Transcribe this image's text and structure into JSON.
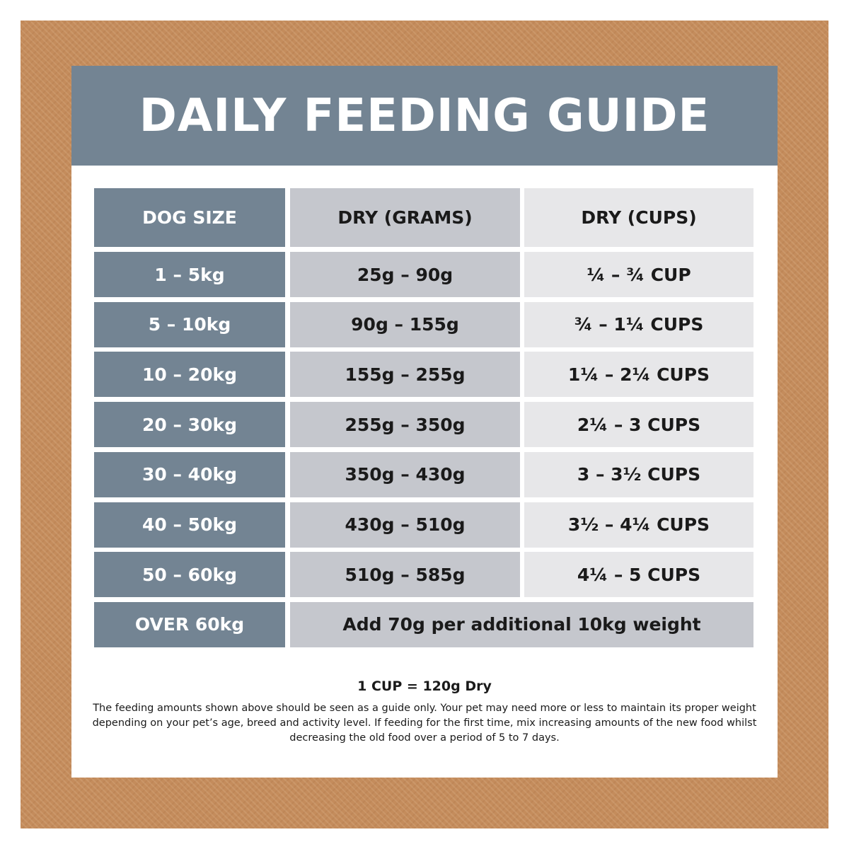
{
  "title": "DAILY FEEDING GUIDE",
  "table": {
    "headers": [
      "DOG SIZE",
      "DRY (GRAMS)",
      "DRY (CUPS)"
    ],
    "rows": [
      [
        "1 – 5kg",
        "25g – 90g",
        "¼ – ¾ CUP"
      ],
      [
        "5 – 10kg",
        "90g – 155g",
        "¾ – 1¼ CUPS"
      ],
      [
        "10 – 20kg",
        "155g – 255g",
        "1¼ – 2¼ CUPS"
      ],
      [
        "20 – 30kg",
        "255g – 350g",
        "2¼ – 3 CUPS"
      ],
      [
        "30 – 40kg",
        "350g – 430g",
        "3 – 3½ CUPS"
      ],
      [
        "40 – 50kg",
        "430g – 510g",
        "3½ – 4¼ CUPS"
      ],
      [
        "50 – 60kg",
        "510g – 585g",
        "4¼ – 5 CUPS"
      ]
    ],
    "last_row": {
      "size": "OVER 60kg",
      "note": "Add 70g per additional 10kg weight"
    }
  },
  "footer": {
    "conversion": "1 CUP = 120g Dry",
    "disclaimer": "The feeding amounts shown above should be seen as a guide only. Your pet may need more or less to maintain its proper weight depending on your pet’s age, breed and activity level. If feeding for the first time, mix increasing amounts of the new food whilst decreasing the old food over a period of 5 to 7 days."
  },
  "colors": {
    "frame": "#c48c5c",
    "slate": "#738493",
    "mid_grey": "#c5c7cd",
    "light_grey": "#e7e7e9"
  }
}
